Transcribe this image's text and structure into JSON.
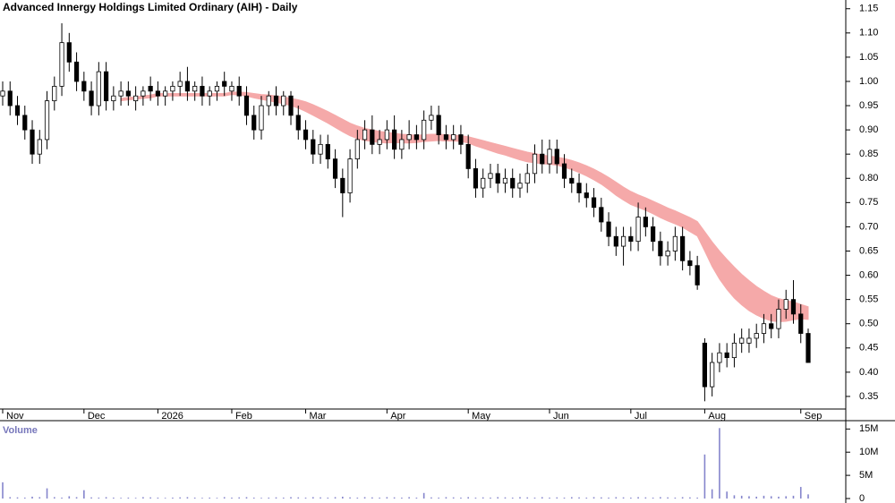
{
  "chart_data": [
    {
      "type": "candlestick",
      "title": "Advanced Innergy Holdings Limited Ordinary (AIH) - Daily",
      "categories": [
        "Nov",
        null,
        null,
        null,
        null,
        null,
        null,
        null,
        null,
        null,
        null,
        "Dec",
        null,
        null,
        null,
        null,
        null,
        null,
        null,
        null,
        null,
        "2026",
        null,
        null,
        null,
        null,
        null,
        null,
        null,
        null,
        null,
        "Feb",
        null,
        null,
        null,
        null,
        null,
        null,
        null,
        null,
        null,
        "Mar",
        null,
        null,
        null,
        null,
        null,
        null,
        null,
        null,
        null,
        null,
        "Apr",
        null,
        null,
        null,
        null,
        null,
        null,
        null,
        null,
        null,
        null,
        "May",
        null,
        null,
        null,
        null,
        null,
        null,
        null,
        null,
        null,
        null,
        "Jun",
        null,
        null,
        null,
        null,
        null,
        null,
        null,
        null,
        null,
        null,
        "Jul",
        null,
        null,
        null,
        null,
        null,
        null,
        null,
        null,
        null,
        "Aug",
        null,
        null,
        null,
        null,
        null,
        null,
        null,
        null,
        null,
        null,
        null,
        null,
        "Sep",
        null
      ],
      "open": [
        0.97,
        0.98,
        0.95,
        0.93,
        0.9,
        0.85,
        0.88,
        0.96,
        0.99,
        1.08,
        1.04,
        1.0,
        0.98,
        0.95,
        1.02,
        0.96,
        0.97,
        0.98,
        0.96,
        0.97,
        0.99,
        0.98,
        0.97,
        0.98,
        0.99,
        1.0,
        0.98,
        0.99,
        0.97,
        0.98,
        1.0,
        0.98,
        0.99,
        0.97,
        0.93,
        0.9,
        0.95,
        0.97,
        0.95,
        0.97,
        0.93,
        0.9,
        0.88,
        0.85,
        0.87,
        0.84,
        0.8,
        0.77,
        0.84,
        0.88,
        0.9,
        0.87,
        0.88,
        0.9,
        0.86,
        0.88,
        0.89,
        0.88,
        0.92,
        0.93,
        0.89,
        0.88,
        0.89,
        0.87,
        0.82,
        0.78,
        0.8,
        0.81,
        0.79,
        0.8,
        0.78,
        0.79,
        0.81,
        0.85,
        0.83,
        0.86,
        0.83,
        0.8,
        0.79,
        0.77,
        0.76,
        0.74,
        0.71,
        0.68,
        0.66,
        0.68,
        0.67,
        0.72,
        0.7,
        0.67,
        0.64,
        0.65,
        0.68,
        0.63,
        0.62,
        0.46,
        0.37,
        0.42,
        0.44,
        0.43,
        0.46,
        0.46,
        0.47,
        0.48,
        0.5,
        0.49,
        0.53,
        0.55,
        0.52,
        0.48
      ],
      "high": [
        1.0,
        1.0,
        0.97,
        0.95,
        0.92,
        0.9,
        0.98,
        1.01,
        1.12,
        1.1,
        1.06,
        1.02,
        1.0,
        1.04,
        1.04,
        0.99,
        1.0,
        1.0,
        0.99,
        0.99,
        1.01,
        1.0,
        0.99,
        1.0,
        1.02,
        1.03,
        1.0,
        1.01,
        0.99,
        1.0,
        1.02,
        1.0,
        1.01,
        0.99,
        0.95,
        0.97,
        0.98,
        0.99,
        0.98,
        0.98,
        0.95,
        0.92,
        0.9,
        0.89,
        0.89,
        0.86,
        0.82,
        0.86,
        0.9,
        0.92,
        0.93,
        0.9,
        0.92,
        0.93,
        0.9,
        0.92,
        0.91,
        0.94,
        0.95,
        0.95,
        0.91,
        0.91,
        0.91,
        0.89,
        0.84,
        0.82,
        0.83,
        0.83,
        0.82,
        0.82,
        0.81,
        0.83,
        0.87,
        0.88,
        0.88,
        0.88,
        0.85,
        0.82,
        0.81,
        0.79,
        0.78,
        0.76,
        0.73,
        0.7,
        0.7,
        0.7,
        0.75,
        0.74,
        0.72,
        0.69,
        0.67,
        0.7,
        0.7,
        0.65,
        0.64,
        0.47,
        0.44,
        0.46,
        0.46,
        0.48,
        0.49,
        0.49,
        0.5,
        0.52,
        0.52,
        0.55,
        0.57,
        0.59,
        0.54,
        0.49
      ],
      "low": [
        0.95,
        0.93,
        0.91,
        0.88,
        0.83,
        0.83,
        0.86,
        0.94,
        0.97,
        1.02,
        0.98,
        0.96,
        0.93,
        0.93,
        0.94,
        0.94,
        0.95,
        0.95,
        0.94,
        0.95,
        0.96,
        0.95,
        0.95,
        0.96,
        0.97,
        0.96,
        0.96,
        0.95,
        0.95,
        0.96,
        0.97,
        0.96,
        0.95,
        0.91,
        0.88,
        0.88,
        0.93,
        0.93,
        0.93,
        0.91,
        0.88,
        0.86,
        0.83,
        0.83,
        0.82,
        0.78,
        0.72,
        0.75,
        0.82,
        0.86,
        0.85,
        0.85,
        0.86,
        0.84,
        0.84,
        0.86,
        0.86,
        0.86,
        0.9,
        0.87,
        0.86,
        0.86,
        0.85,
        0.8,
        0.76,
        0.76,
        0.78,
        0.77,
        0.77,
        0.76,
        0.76,
        0.77,
        0.79,
        0.81,
        0.81,
        0.81,
        0.78,
        0.77,
        0.75,
        0.74,
        0.72,
        0.69,
        0.66,
        0.64,
        0.62,
        0.65,
        0.65,
        0.68,
        0.65,
        0.62,
        0.62,
        0.63,
        0.61,
        0.6,
        0.57,
        0.34,
        0.35,
        0.4,
        0.41,
        0.41,
        0.44,
        0.44,
        0.45,
        0.46,
        0.47,
        0.47,
        0.51,
        0.5,
        0.46,
        0.42
      ],
      "close": [
        0.98,
        0.95,
        0.93,
        0.9,
        0.85,
        0.88,
        0.96,
        0.99,
        1.08,
        1.04,
        1.0,
        0.98,
        0.95,
        1.02,
        0.96,
        0.97,
        0.98,
        0.97,
        0.97,
        0.98,
        0.98,
        0.97,
        0.98,
        0.99,
        1.0,
        0.98,
        0.99,
        0.97,
        0.98,
        0.99,
        0.99,
        0.99,
        0.97,
        0.93,
        0.9,
        0.95,
        0.97,
        0.95,
        0.97,
        0.93,
        0.9,
        0.88,
        0.85,
        0.87,
        0.84,
        0.8,
        0.77,
        0.84,
        0.88,
        0.9,
        0.87,
        0.88,
        0.9,
        0.86,
        0.88,
        0.89,
        0.88,
        0.92,
        0.93,
        0.89,
        0.88,
        0.89,
        0.87,
        0.82,
        0.78,
        0.8,
        0.81,
        0.79,
        0.8,
        0.78,
        0.79,
        0.81,
        0.85,
        0.83,
        0.86,
        0.83,
        0.8,
        0.79,
        0.77,
        0.76,
        0.74,
        0.71,
        0.68,
        0.66,
        0.68,
        0.67,
        0.72,
        0.7,
        0.67,
        0.64,
        0.65,
        0.68,
        0.63,
        0.62,
        0.58,
        0.37,
        0.42,
        0.44,
        0.43,
        0.46,
        0.47,
        0.47,
        0.48,
        0.5,
        0.49,
        0.53,
        0.55,
        0.52,
        0.48,
        0.42
      ],
      "ribbon": {
        "color": "#f5a9a9",
        "upper": [
          null,
          null,
          null,
          null,
          null,
          null,
          null,
          null,
          null,
          null,
          null,
          null,
          null,
          null,
          null,
          null,
          0.965,
          0.967,
          0.968,
          0.97,
          0.972,
          0.975,
          0.975,
          0.975,
          0.975,
          0.975,
          0.975,
          0.975,
          0.975,
          0.975,
          0.975,
          0.978,
          0.978,
          0.977,
          0.975,
          0.973,
          0.972,
          0.97,
          0.968,
          0.965,
          0.962,
          0.958,
          0.952,
          0.945,
          0.938,
          0.93,
          0.922,
          0.914,
          0.908,
          0.903,
          0.9,
          0.897,
          0.895,
          0.893,
          0.891,
          0.89,
          0.889,
          0.89,
          0.891,
          0.891,
          0.89,
          0.889,
          0.888,
          0.886,
          0.882,
          0.878,
          0.874,
          0.87,
          0.866,
          0.862,
          0.858,
          0.854,
          0.851,
          0.848,
          0.846,
          0.844,
          0.841,
          0.837,
          0.832,
          0.826,
          0.819,
          0.811,
          0.802,
          0.792,
          0.782,
          0.773,
          0.766,
          0.76,
          0.753,
          0.746,
          0.739,
          0.733,
          0.726,
          0.719,
          0.711,
          0.69,
          0.669,
          0.65,
          0.633,
          0.617,
          0.602,
          0.589,
          0.577,
          0.567,
          0.558,
          0.552,
          0.548,
          0.545,
          0.54,
          0.535
        ],
        "lower": [
          null,
          null,
          null,
          null,
          null,
          null,
          null,
          null,
          null,
          null,
          null,
          null,
          null,
          null,
          null,
          null,
          0.96,
          0.962,
          0.963,
          0.965,
          0.966,
          0.97,
          0.97,
          0.97,
          0.97,
          0.97,
          0.97,
          0.97,
          0.97,
          0.97,
          0.97,
          0.973,
          0.972,
          0.97,
          0.966,
          0.963,
          0.96,
          0.957,
          0.954,
          0.95,
          0.945,
          0.938,
          0.93,
          0.922,
          0.914,
          0.905,
          0.896,
          0.888,
          0.882,
          0.878,
          0.876,
          0.874,
          0.873,
          0.874,
          0.873,
          0.873,
          0.874,
          0.876,
          0.877,
          0.878,
          0.877,
          0.877,
          0.876,
          0.873,
          0.867,
          0.862,
          0.857,
          0.852,
          0.848,
          0.843,
          0.838,
          0.834,
          0.832,
          0.83,
          0.829,
          0.827,
          0.823,
          0.818,
          0.812,
          0.805,
          0.797,
          0.788,
          0.777,
          0.765,
          0.755,
          0.746,
          0.74,
          0.734,
          0.727,
          0.719,
          0.712,
          0.706,
          0.699,
          0.69,
          0.681,
          0.65,
          0.618,
          0.592,
          0.571,
          0.553,
          0.539,
          0.527,
          0.518,
          0.511,
          0.506,
          0.504,
          0.505,
          0.508,
          0.51,
          0.509
        ]
      },
      "ylim": [
        0.324,
        1.168
      ],
      "yticks": [
        0.35,
        {
          "value": 0.4,
          "label": "0.40"
        },
        0.45,
        {
          "value": 0.5,
          "label": "0.50"
        },
        0.55,
        {
          "value": 0.6,
          "label": "0.60"
        },
        0.65,
        {
          "value": 0.7,
          "label": "0.70"
        },
        0.75,
        {
          "value": 0.8,
          "label": "0.80"
        },
        0.85,
        {
          "value": 0.9,
          "label": "0.90"
        },
        0.95,
        {
          "value": 1,
          "label": "1.00"
        },
        1.05,
        {
          "value": 1.1,
          "label": "1.10"
        },
        1.15
      ]
    },
    {
      "type": "bar",
      "title": "Volume",
      "color": "#8585cc",
      "values": [
        3500000,
        300000,
        250000,
        200000,
        400000,
        300000,
        2200000,
        300000,
        200000,
        500000,
        300000,
        1800000,
        250000,
        200000,
        300000,
        200000,
        150000,
        200000,
        150000,
        300000,
        250000,
        200000,
        150000,
        200000,
        250000,
        300000,
        200000,
        150000,
        200000,
        150000,
        300000,
        200000,
        250000,
        300000,
        200000,
        150000,
        200000,
        250000,
        200000,
        300000,
        250000,
        200000,
        300000,
        250000,
        200000,
        300000,
        400000,
        250000,
        200000,
        300000,
        250000,
        200000,
        300000,
        250000,
        200000,
        300000,
        200000,
        1200000,
        250000,
        200000,
        300000,
        250000,
        200000,
        300000,
        200000,
        250000,
        200000,
        300000,
        250000,
        200000,
        300000,
        250000,
        200000,
        300000,
        200000,
        250000,
        200000,
        300000,
        250000,
        200000,
        300000,
        250000,
        200000,
        300000,
        250000,
        200000,
        300000,
        250000,
        200000,
        300000,
        250000,
        200000,
        300000,
        250000,
        200000,
        9500000,
        2000000,
        15200000,
        1500000,
        700000,
        600000,
        500000,
        400000,
        600000,
        500000,
        400000,
        500000,
        600000,
        2500000,
        900000
      ],
      "ylim": [
        0,
        16800000
      ],
      "yticks": [
        0,
        {
          "value": 5000000,
          "label": "5M"
        },
        {
          "value": 10000000,
          "label": "10M"
        },
        {
          "value": 15000000,
          "label": "15M"
        }
      ]
    }
  ]
}
